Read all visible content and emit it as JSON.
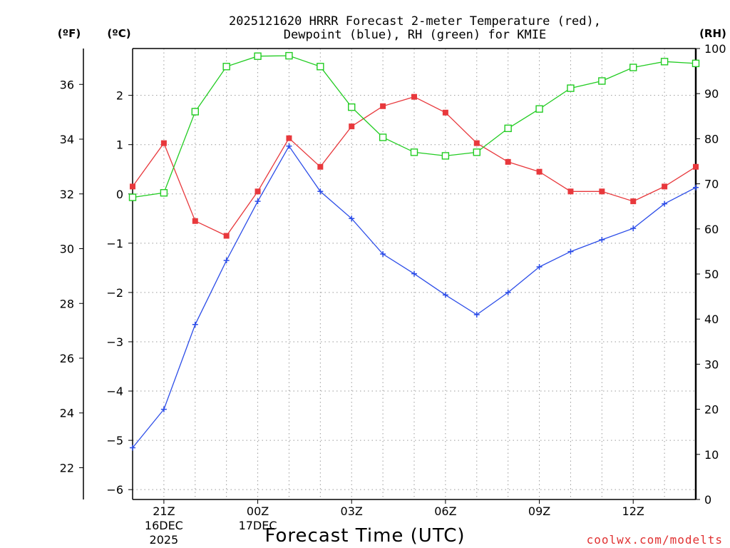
{
  "chart_data": {
    "type": "line",
    "title_line1": "2025121620 HRRR Forecast 2-meter Temperature (red),",
    "title_line2": "Dewpoint (blue), RH (green) for KMIE",
    "xlabel": "Forecast Time (UTC)",
    "left_outer_axis_label": "(ºF)",
    "left_inner_axis_label": "(ºC)",
    "right_axis_label": "(RH)",
    "watermark": "coolwx.com/modelts",
    "hours": [
      0,
      1,
      2,
      3,
      4,
      5,
      6,
      7,
      8,
      9,
      10,
      11,
      12,
      13,
      14,
      15,
      16,
      17,
      18
    ],
    "x_ticks": [
      {
        "hour": 1,
        "label": "21Z",
        "sublabel1": "16DEC",
        "sublabel2": "2025"
      },
      {
        "hour": 4,
        "label": "00Z",
        "sublabel1": "17DEC",
        "sublabel2": ""
      },
      {
        "hour": 7,
        "label": "03Z",
        "sublabel1": "",
        "sublabel2": ""
      },
      {
        "hour": 10,
        "label": "06Z",
        "sublabel1": "",
        "sublabel2": ""
      },
      {
        "hour": 13,
        "label": "09Z",
        "sublabel1": "",
        "sublabel2": ""
      },
      {
        "hour": 16,
        "label": "12Z",
        "sublabel1": "",
        "sublabel2": ""
      }
    ],
    "celsius_ylim": [
      -6.2,
      2.95
    ],
    "celsius_ticks": [
      "2",
      "1",
      "0",
      "−1",
      "−2",
      "−3",
      "−4",
      "−5",
      "−6"
    ],
    "celsius_tick_values": [
      2,
      1,
      0,
      -1,
      -2,
      -3,
      -4,
      -5,
      -6
    ],
    "fahrenheit_ticks": [
      "36",
      "34",
      "32",
      "30",
      "28",
      "26",
      "24",
      "22"
    ],
    "fahrenheit_tick_values": [
      36,
      34,
      32,
      30,
      28,
      26,
      24,
      22
    ],
    "rh_ylim": [
      0,
      100
    ],
    "rh_ticks": [
      "100",
      "90",
      "80",
      "70",
      "60",
      "50",
      "40",
      "30",
      "20",
      "10",
      "0"
    ],
    "rh_tick_values": [
      100,
      90,
      80,
      70,
      60,
      50,
      40,
      30,
      20,
      10,
      0
    ],
    "series": [
      {
        "name": "Temperature",
        "unit": "C",
        "color": "#e8383c",
        "marker": "filled-square",
        "values": [
          0.15,
          1.03,
          -0.55,
          -0.85,
          0.05,
          1.13,
          0.55,
          1.37,
          1.78,
          1.97,
          1.65,
          1.03,
          0.65,
          0.45,
          0.05,
          0.05,
          -0.15,
          0.15,
          0.55
        ]
      },
      {
        "name": "Dewpoint",
        "unit": "C",
        "color": "#2b4ce8",
        "marker": "plus",
        "values": [
          -5.15,
          -4.37,
          -2.65,
          -1.35,
          -0.15,
          0.97,
          0.05,
          -0.5,
          -1.22,
          -1.62,
          -2.05,
          -2.45,
          -2.0,
          -1.48,
          -1.17,
          -0.93,
          -0.7,
          -0.2,
          0.13
        ]
      },
      {
        "name": "RH",
        "unit": "%",
        "color": "#22cc22",
        "marker": "open-square",
        "values": [
          67,
          68,
          86,
          96,
          98.3,
          98.4,
          96,
          87,
          80.3,
          77,
          76.2,
          77,
          82.3,
          86.6,
          91.2,
          92.8,
          95.8,
          97.1,
          96.7
        ]
      }
    ]
  }
}
